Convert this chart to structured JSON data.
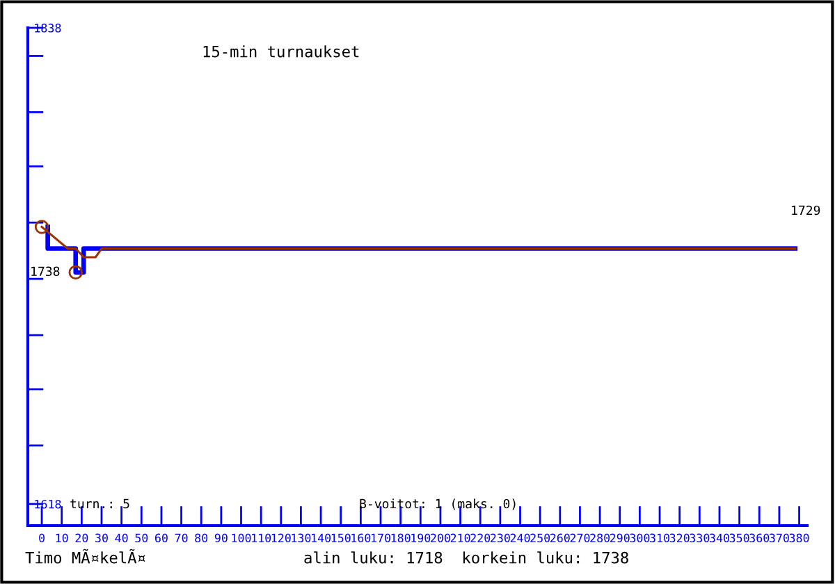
{
  "chart_data": {
    "type": "line",
    "title": "15-min turnaukset",
    "xlim": [
      -7,
      384
    ],
    "xticks": [
      0,
      10,
      20,
      30,
      40,
      50,
      60,
      70,
      80,
      90,
      100,
      110,
      120,
      130,
      140,
      150,
      160,
      170,
      180,
      190,
      200,
      210,
      220,
      230,
      240,
      250,
      260,
      270,
      280,
      290,
      300,
      310,
      320,
      330,
      340,
      350,
      360,
      370,
      380
    ],
    "ylim": [
      1608,
      1838
    ],
    "yticks": [
      1618,
      {
        "value": 1645,
        "label": null
      },
      {
        "value": 1671,
        "label": null
      },
      {
        "value": 1696,
        "label": null
      },
      {
        "value": 1722,
        "label": null
      },
      {
        "value": 1748,
        "label": null
      },
      {
        "value": 1774,
        "label": null
      },
      {
        "value": 1799,
        "label": null
      },
      {
        "value": 1825,
        "label": null
      },
      1838
    ],
    "series": [
      {
        "color": "#0000ff",
        "x": [
          3,
          3,
          17,
          17,
          21,
          21,
          378
        ],
        "values": [
          1746,
          1736,
          1736,
          1725,
          1725,
          1736,
          1736
        ]
      },
      {
        "color": "#993300",
        "x": [
          0,
          13,
          17,
          21,
          27,
          30,
          378
        ],
        "values": [
          1746,
          1736,
          1736,
          1732,
          1732,
          1736,
          1736
        ]
      },
      {
        "type": "scatter",
        "color": "#993300",
        "marker": "circle",
        "x": [
          0,
          17
        ],
        "values": [
          1746,
          1725
        ]
      }
    ],
    "annotations": [
      {
        "text": "1738",
        "x": 17,
        "y": 1725
      },
      "1729",
      "turn.: 5",
      "B-voitot: 1 (maks. 0)",
      "Timo MÃ¤kelÃ¤",
      "alin luku: 1718  korkein luku: 1738"
    ],
    "grid": false,
    "legend": false
  }
}
